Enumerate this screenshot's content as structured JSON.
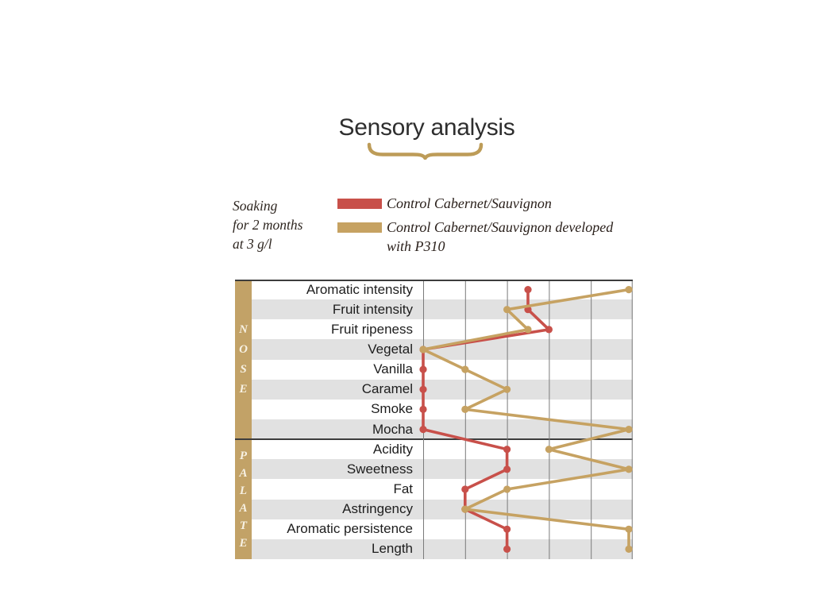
{
  "title": "Sensory analysis",
  "legend": {
    "note_lines": [
      "Soaking",
      "for 2 months",
      "at 3 g/l"
    ],
    "entries": [
      {
        "label": "Control Cabernet/Sauvignon",
        "lines": [
          "Control Cabernet/Sauvignon"
        ],
        "color": "#c8504a"
      },
      {
        "label": "Control Cabernet/Sauvignon developed with P310",
        "lines": [
          "Control Cabernet/Sauvignon developed",
          "with P310"
        ],
        "color": "#c6a262"
      }
    ]
  },
  "chart_data": {
    "type": "line",
    "orientation": "horizontal-category",
    "title": "Sensory analysis",
    "sections": [
      {
        "name": "NOSE",
        "categories": [
          "Aromatic intensity",
          "Fruit intensity",
          "Fruit ripeness",
          "Vegetal",
          "Vanilla",
          "Caramel",
          "Smoke",
          "Mocha"
        ]
      },
      {
        "name": "PALATE",
        "categories": [
          "Acidity",
          "Sweetness",
          "Fat",
          "Astringency",
          "Aromatic persistence",
          "Length"
        ]
      }
    ],
    "categories": [
      "Aromatic intensity",
      "Fruit intensity",
      "Fruit ripeness",
      "Vegetal",
      "Vanilla",
      "Caramel",
      "Smoke",
      "Mocha",
      "Acidity",
      "Sweetness",
      "Fat",
      "Astringency",
      "Aromatic persistence",
      "Length"
    ],
    "series": [
      {
        "name": "Control Cabernet/Sauvignon",
        "color": "#c8504a",
        "values": [
          2.5,
          2.5,
          3,
          0,
          0,
          0,
          0,
          0,
          2,
          2,
          1,
          1,
          2,
          2
        ]
      },
      {
        "name": "Control Cabernet/Sauvignon developed with P310",
        "color": "#c6a262",
        "values": [
          5,
          2,
          2.5,
          0,
          1,
          2,
          1,
          5,
          3,
          5,
          2,
          1,
          5,
          5
        ]
      }
    ],
    "value_axis": {
      "min": 0,
      "max": 5,
      "gridline_values": [
        0,
        1,
        2,
        3,
        4,
        5
      ],
      "tick_labels_visible": false
    },
    "row_stripe_colors": [
      "#ffffff",
      "#e1e1e1"
    ],
    "grid": true,
    "legend_position": "above"
  },
  "colors": {
    "accent_red": "#c8504a",
    "accent_gold": "#c6a262",
    "band_gold": "#c2a267",
    "brace_gold": "#bd9c58",
    "stripe_gray": "#e1e1e1",
    "gridline_gray": "#7a7a7a",
    "border_dark": "#3d3d3d",
    "text_dark": "#1d1d1d",
    "band_letter_cream": "#f7f1e3",
    "background": "#ffffff"
  }
}
